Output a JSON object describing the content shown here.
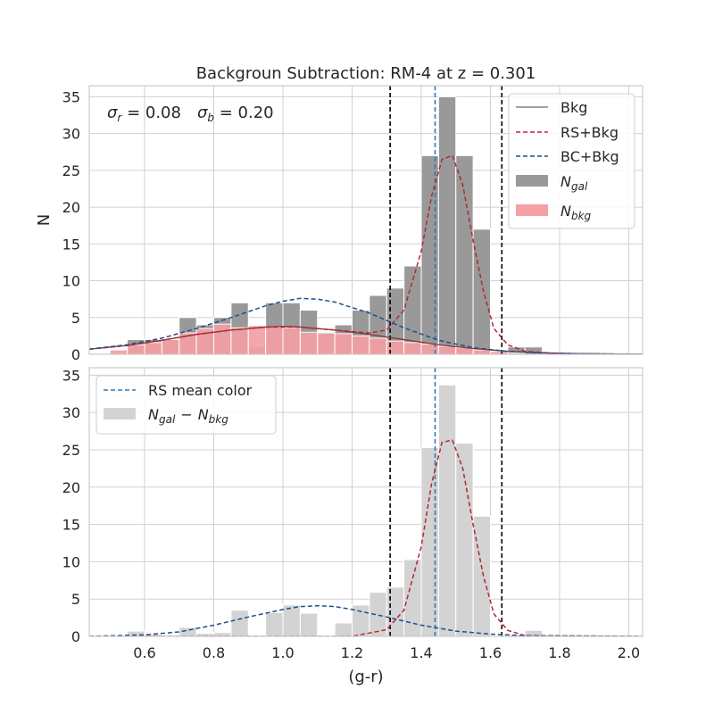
{
  "chart_data": {
    "type": "bar",
    "title": "Backgroun Subtraction: RM-4 at z = 0.301",
    "xlabel": "(g-r)",
    "xlim": [
      0.44,
      2.04
    ],
    "x_ticks": [
      0.6,
      0.8,
      1.0,
      1.2,
      1.4,
      1.6,
      1.8,
      2.0
    ],
    "x_tick_labels": [
      "0.6",
      "0.8",
      "1.0",
      "1.2",
      "1.4",
      "1.6",
      "1.8",
      "2.0"
    ],
    "bin_width": 0.05,
    "grid": true,
    "vlines": {
      "black_dashed": [
        1.31,
        1.633
      ],
      "rs_mean_color": 1.44
    },
    "colors": {
      "n_gal": "#999999",
      "n_bkg": "#f4a0a4",
      "residual": "#d3d3d3",
      "bkg_line": "#8c3a3a",
      "rs_line": "#b22830",
      "bc_line": "#1f4e8c",
      "rs_mean": "#2b7bb9",
      "vline": "#000000"
    },
    "panels": [
      {
        "ylabel": "N",
        "ylim": [
          0,
          36.5
        ],
        "y_ticks": [
          0,
          5,
          10,
          15,
          20,
          25,
          30,
          35
        ],
        "y_tick_labels": [
          "0",
          "5",
          "10",
          "15",
          "20",
          "25",
          "30",
          "35"
        ],
        "annotation": {
          "sigma_r": "σr = 0.08",
          "sigma_b": "σb = 0.20"
        },
        "legend_position": "upper right",
        "legend": [
          {
            "label": "Bkg",
            "kind": "solid-line"
          },
          {
            "label": "RS+Bkg",
            "kind": "dashed-line"
          },
          {
            "label": "BC+Bkg",
            "kind": "dashed-line"
          },
          {
            "label": "N",
            "sub": "gal",
            "kind": "patch"
          },
          {
            "label": "N",
            "sub": "bkg",
            "kind": "patch"
          }
        ],
        "series": [
          {
            "name": "Ngal",
            "kind": "hist",
            "bin_left": [
              0.55,
              0.6,
              0.65,
              0.7,
              0.75,
              0.8,
              0.85,
              0.9,
              0.95,
              1.0,
              1.05,
              1.1,
              1.15,
              1.2,
              1.25,
              1.3,
              1.35,
              1.4,
              1.45,
              1.5,
              1.55,
              1.6,
              1.65,
              1.7
            ],
            "values": [
              2,
              2,
              2,
              5,
              4,
              5,
              7,
              1,
              7,
              7,
              6,
              3,
              4,
              6,
              8,
              9,
              12,
              27,
              35,
              27,
              17,
              0,
              1,
              1
            ]
          },
          {
            "name": "Nbkg",
            "kind": "hist",
            "bin_left": [
              0.5,
              0.55,
              0.6,
              0.65,
              0.7,
              0.75,
              0.8,
              0.85,
              0.9,
              0.95,
              1.0,
              1.05,
              1.1,
              1.15,
              1.2,
              1.25,
              1.3,
              1.35,
              1.4,
              1.45,
              1.5,
              1.55,
              1.6,
              1.65
            ],
            "values": [
              0.6,
              1.3,
              1.6,
              2.0,
              2.9,
              3.5,
              4.1,
              3.6,
              3.9,
              3.7,
              3.6,
              3.0,
              2.9,
              2.8,
              2.5,
              2.2,
              1.8,
              1.6,
              1.4,
              1.1,
              0.9,
              0.6,
              0.4,
              0.2
            ]
          },
          {
            "name": "Bkg",
            "kind": "line",
            "x": [
              0.44,
              0.55,
              0.65,
              0.75,
              0.85,
              0.95,
              1.0,
              1.05,
              1.15,
              1.25,
              1.35,
              1.45,
              1.55,
              1.65,
              1.75,
              1.85,
              2.04
            ],
            "y": [
              0.7,
              1.2,
              1.9,
              2.7,
              3.3,
              3.7,
              3.8,
              3.7,
              3.3,
              2.7,
              2.0,
              1.3,
              0.8,
              0.4,
              0.2,
              0.1,
              0.0
            ]
          },
          {
            "name": "RS+Bkg",
            "kind": "line",
            "x": [
              0.44,
              0.55,
              0.65,
              0.75,
              0.85,
              0.95,
              1.05,
              1.15,
              1.25,
              1.3,
              1.35,
              1.4,
              1.43,
              1.46,
              1.49,
              1.52,
              1.55,
              1.58,
              1.61,
              1.65,
              1.7,
              1.8,
              2.04
            ],
            "y": [
              0.7,
              1.2,
              1.9,
              2.7,
              3.3,
              3.7,
              3.7,
              3.3,
              2.9,
              3.3,
              6.0,
              14.0,
              21.5,
              26.5,
              27.0,
              23.0,
              15.5,
              8.5,
              3.5,
              1.3,
              0.4,
              0.1,
              0.0
            ]
          },
          {
            "name": "BC+Bkg",
            "kind": "line",
            "x": [
              0.44,
              0.55,
              0.65,
              0.75,
              0.85,
              0.95,
              1.0,
              1.05,
              1.1,
              1.15,
              1.25,
              1.35,
              1.45,
              1.55,
              1.65,
              1.75,
              1.85,
              2.04
            ],
            "y": [
              0.7,
              1.3,
              2.2,
              3.5,
              5.0,
              6.6,
              7.2,
              7.6,
              7.5,
              7.1,
              5.6,
              3.6,
              1.9,
              0.9,
              0.4,
              0.2,
              0.1,
              0.0
            ]
          }
        ]
      },
      {
        "ylabel": "",
        "ylim": [
          0,
          36
        ],
        "y_ticks": [
          0,
          5,
          10,
          15,
          20,
          25,
          30,
          35
        ],
        "y_tick_labels": [
          "0",
          "5",
          "10",
          "15",
          "20",
          "25",
          "30",
          "35"
        ],
        "legend_position": "upper left",
        "legend": [
          {
            "label": "RS mean color",
            "kind": "dashed-line"
          },
          {
            "label": "N",
            "sub": "gal",
            "label2": "−",
            "label3": "N",
            "sub2": "bkg",
            "kind": "patch"
          }
        ],
        "series": [
          {
            "name": "Ngal − Nbkg",
            "kind": "hist",
            "bin_left": [
              0.55,
              0.6,
              0.65,
              0.7,
              0.75,
              0.8,
              0.85,
              0.9,
              0.95,
              1.0,
              1.05,
              1.1,
              1.15,
              1.2,
              1.25,
              1.3,
              1.35,
              1.4,
              1.45,
              1.5,
              1.55,
              1.6,
              1.65,
              1.7
            ],
            "values": [
              0.7,
              0.3,
              0,
              1.2,
              0.4,
              0.5,
              3.5,
              0,
              3.2,
              4.2,
              3.1,
              0.1,
              1.8,
              4.2,
              5.9,
              6.6,
              10.3,
              25.3,
              33.7,
              25.9,
              16.1,
              0,
              0.2,
              0.8
            ]
          },
          {
            "name": "RS",
            "kind": "line",
            "x": [
              0.44,
              1.2,
              1.3,
              1.35,
              1.4,
              1.43,
              1.46,
              1.49,
              1.52,
              1.55,
              1.58,
              1.61,
              1.65,
              1.7,
              2.04
            ],
            "y": [
              0.0,
              0.0,
              0.9,
              3.5,
              12.0,
              20.5,
              26.0,
              26.3,
              22.5,
              15.0,
              8.0,
              3.0,
              0.8,
              0.1,
              0.0
            ]
          },
          {
            "name": "BC",
            "kind": "line",
            "x": [
              0.44,
              0.6,
              0.7,
              0.8,
              0.9,
              1.0,
              1.05,
              1.1,
              1.15,
              1.2,
              1.3,
              1.4,
              1.5,
              1.6,
              1.7,
              2.04
            ],
            "y": [
              0.0,
              0.2,
              0.6,
              1.5,
              2.6,
              3.6,
              4.0,
              4.1,
              4.0,
              3.6,
              2.6,
              1.5,
              0.7,
              0.3,
              0.1,
              0.0
            ]
          }
        ]
      }
    ]
  }
}
